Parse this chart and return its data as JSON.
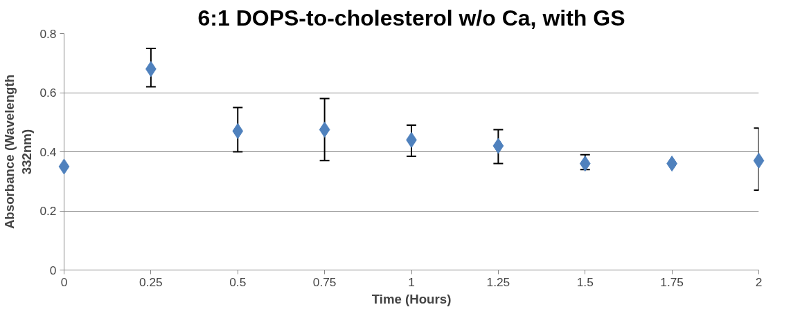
{
  "chart_data": {
    "type": "scatter",
    "title": "6:1 DOPS-to-cholesterol w/o Ca, with GS",
    "xlabel": "Time (Hours)",
    "ylabel": "Absorbance (Wavelength\n332nm)",
    "x": [
      0,
      0.25,
      0.5,
      0.75,
      1,
      1.25,
      1.5,
      1.75,
      2
    ],
    "series": [
      {
        "color": "#4f81bd",
        "values": [
          0.35,
          0.68,
          0.47,
          0.475,
          0.44,
          0.42,
          0.36,
          0.36,
          0.37
        ],
        "errors": [
          null,
          [
            0.62,
            0.75
          ],
          [
            0.4,
            0.55
          ],
          [
            0.37,
            0.58
          ],
          [
            0.385,
            0.49
          ],
          [
            0.36,
            0.475
          ],
          [
            0.34,
            0.39
          ],
          null,
          [
            0.27,
            0.48
          ]
        ]
      }
    ],
    "xlim": [
      0,
      2
    ],
    "xticks": [
      0,
      0.25,
      0.5,
      0.75,
      1,
      1.25,
      1.5,
      1.75,
      2
    ],
    "ylim": [
      0,
      0.8
    ],
    "yticks": [
      0,
      0.2,
      0.4,
      0.6,
      0.8
    ],
    "grid": "y",
    "marker": "diamond"
  }
}
